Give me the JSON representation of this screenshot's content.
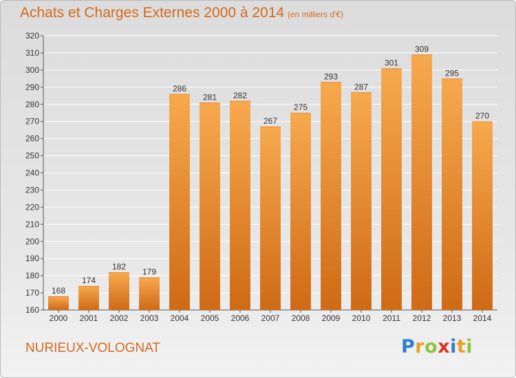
{
  "title": "Achats et Charges Externes 2000 à 2014",
  "subtitle": "(en milliers d'€)",
  "commune": "NURIEUX-VOLOGNAT",
  "logo": {
    "letters": [
      "P",
      "r",
      "o",
      "x",
      "i",
      "t",
      "i"
    ],
    "colors": [
      "#2f7fd0",
      "#e8a020",
      "#8cc63f",
      "#e03020",
      "#2f7fd0",
      "#e8a020",
      "#8cc63f"
    ]
  },
  "colors": {
    "bar_top": "#f7a94e",
    "bar_bottom": "#cf6a15",
    "text": "#d2691e",
    "axis_text": "#333333",
    "grid": "#ffffff"
  },
  "chart_data": {
    "type": "bar",
    "categories": [
      "2000",
      "2001",
      "2002",
      "2003",
      "2004",
      "2005",
      "2006",
      "2007",
      "2008",
      "2009",
      "2010",
      "2011",
      "2012",
      "2013",
      "2014"
    ],
    "values": [
      168,
      174,
      182,
      179,
      286,
      281,
      282,
      267,
      275,
      293,
      287,
      301,
      309,
      295,
      270
    ],
    "value_labels": [
      "168",
      "174",
      "182",
      "179",
      "286",
      "281",
      "282",
      "267",
      "275",
      "293",
      "287",
      "301",
      "309",
      "295",
      "270"
    ],
    "ylim": [
      160,
      320
    ],
    "yticks": [
      "160",
      "170",
      "180",
      "190",
      "200",
      "210",
      "220",
      "230",
      "240",
      "250",
      "260",
      "270",
      "280",
      "290",
      "300",
      "310",
      "320"
    ],
    "grid": true,
    "xlabel": "",
    "ylabel": ""
  }
}
